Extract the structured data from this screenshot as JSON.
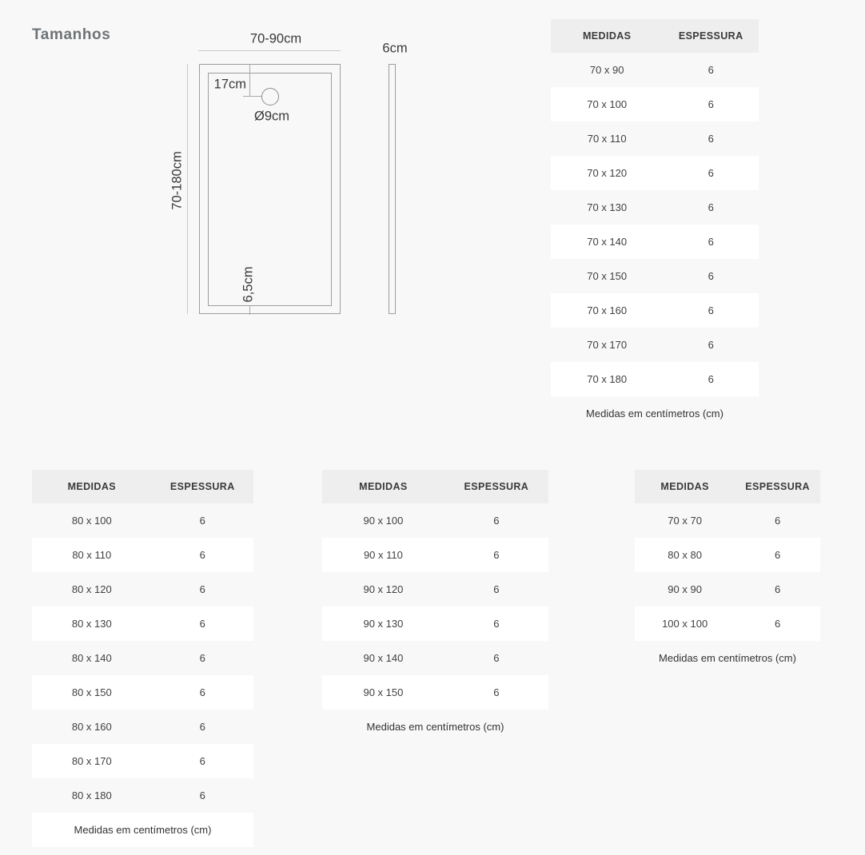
{
  "page": {
    "title": "Tamanhos"
  },
  "diagram": {
    "width_range_label": "70-90cm",
    "thickness_label": "6cm",
    "drain_offset_label": "17cm",
    "drain_diameter_label": "Ø9cm",
    "length_range_label": "70-180cm",
    "border_height_label": "6,5cm"
  },
  "tables": [
    {
      "name": "70-series",
      "headers": [
        "MEDIDAS",
        "ESPESSURA"
      ],
      "rows": [
        [
          "70 x 90",
          "6"
        ],
        [
          "70 x 100",
          "6"
        ],
        [
          "70 x 110",
          "6"
        ],
        [
          "70 x 120",
          "6"
        ],
        [
          "70 x 130",
          "6"
        ],
        [
          "70 x 140",
          "6"
        ],
        [
          "70 x 150",
          "6"
        ],
        [
          "70 x 160",
          "6"
        ],
        [
          "70 x 170",
          "6"
        ],
        [
          "70 x 180",
          "6"
        ]
      ],
      "footer": "Medidas em centímetros (cm)"
    },
    {
      "name": "80-series",
      "headers": [
        "MEDIDAS",
        "ESPESSURA"
      ],
      "rows": [
        [
          "80 x 100",
          "6"
        ],
        [
          "80 x 110",
          "6"
        ],
        [
          "80 x 120",
          "6"
        ],
        [
          "80 x 130",
          "6"
        ],
        [
          "80 x 140",
          "6"
        ],
        [
          "80 x 150",
          "6"
        ],
        [
          "80 x 160",
          "6"
        ],
        [
          "80 x 170",
          "6"
        ],
        [
          "80 x 180",
          "6"
        ]
      ],
      "footer": "Medidas em centímetros (cm)"
    },
    {
      "name": "90-series",
      "headers": [
        "MEDIDAS",
        "ESPESSURA"
      ],
      "rows": [
        [
          "90 x 100",
          "6"
        ],
        [
          "90 x 110",
          "6"
        ],
        [
          "90 x 120",
          "6"
        ],
        [
          "90 x 130",
          "6"
        ],
        [
          "90 x 140",
          "6"
        ],
        [
          "90 x 150",
          "6"
        ]
      ],
      "footer": "Medidas em centímetros (cm)"
    },
    {
      "name": "square-series",
      "headers": [
        "MEDIDAS",
        "ESPESSURA"
      ],
      "rows": [
        [
          "70 x 70",
          "6"
        ],
        [
          "80 x 80",
          "6"
        ],
        [
          "90 x 90",
          "6"
        ],
        [
          "100 x 100",
          "6"
        ]
      ],
      "footer": "Medidas em centímetros (cm)"
    }
  ],
  "colors": {
    "page_background": "#f8f8f8",
    "table_header_background": "#eeeeee",
    "row_background": "#ffffff",
    "row_alt_background": "#f8f8f8",
    "title_text": "#6e7377",
    "table_text": "#414141",
    "diagram_outline": "#9d9d9d",
    "dimension_line": "#c8c8c8",
    "diagram_text": "#38393b"
  }
}
